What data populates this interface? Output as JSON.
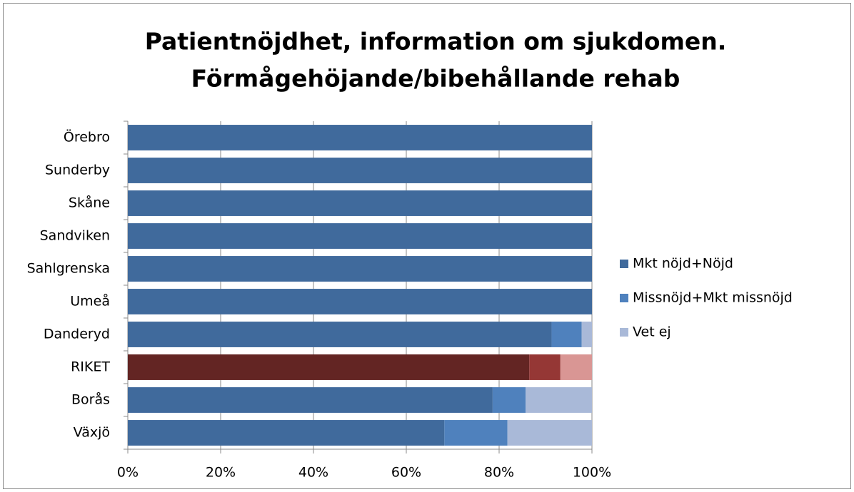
{
  "chart_data": {
    "type": "stacked-barh",
    "title": [
      "Patientnöjdhet, information om sjukdomen.",
      "Förmågehöjande/bibehållande rehab"
    ],
    "categories": [
      "Örebro",
      "Sunderby",
      "Skåne",
      "Sandviken",
      "Sahlgrenska",
      "Umeå",
      "Danderyd",
      "RIKET",
      "Borås",
      "Växjö"
    ],
    "series": [
      {
        "name": "Mkt nöjd+Nöjd",
        "color": "#406a9c",
        "values": [
          100,
          100,
          100,
          100,
          100,
          100,
          91.3,
          86.5,
          78.6,
          68.2
        ],
        "colors": [
          "#406a9c",
          "#406a9c",
          "#406a9c",
          "#406a9c",
          "#406a9c",
          "#406a9c",
          "#406a9c",
          "#632523",
          "#406a9c",
          "#406a9c"
        ]
      },
      {
        "name": "Missnöjd+Mkt missnöjd",
        "color": "#4f81bd",
        "values": [
          0,
          0,
          0,
          0,
          0,
          0,
          6.5,
          6.7,
          7.1,
          13.6
        ],
        "colors": [
          "#4f81bd",
          "#4f81bd",
          "#4f81bd",
          "#4f81bd",
          "#4f81bd",
          "#4f81bd",
          "#4f81bd",
          "#953735",
          "#4f81bd",
          "#4f81bd"
        ]
      },
      {
        "name": "Vet ej",
        "color": "#a9b9d8",
        "values": [
          0,
          0,
          0,
          0,
          0,
          0,
          2.2,
          6.8,
          14.3,
          18.2
        ],
        "colors": [
          "#a9b9d8",
          "#a9b9d8",
          "#a9b9d8",
          "#a9b9d8",
          "#a9b9d8",
          "#a9b9d8",
          "#a9b9d8",
          "#d99694",
          "#a9b9d8",
          "#a9b9d8"
        ]
      }
    ],
    "xlim": [
      0,
      100
    ],
    "xticks": [
      {
        "value": 0,
        "label": "0%"
      },
      {
        "value": 20,
        "label": "20%"
      },
      {
        "value": 40,
        "label": "40%"
      },
      {
        "value": 60,
        "label": "60%"
      },
      {
        "value": 80,
        "label": "80%"
      },
      {
        "value": 100,
        "label": "100%"
      }
    ],
    "grid": true,
    "legend": "right"
  }
}
